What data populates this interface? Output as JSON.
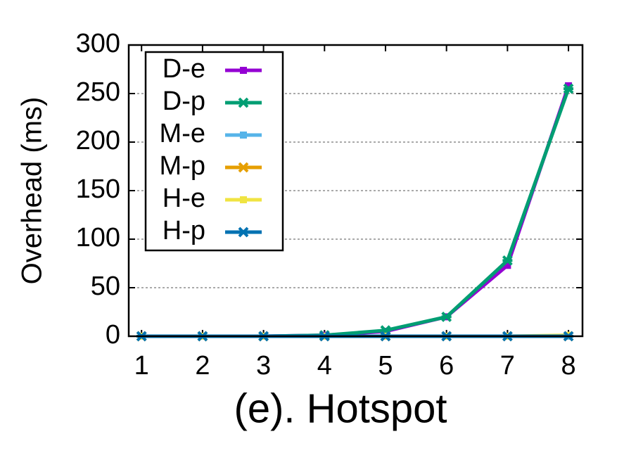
{
  "chart_data": {
    "type": "line",
    "title": "(e). Hotspot",
    "ylabel": "Overhead (ms)",
    "x": [
      1,
      2,
      3,
      4,
      5,
      6,
      7,
      8
    ],
    "xlim": [
      0.79,
      8.23
    ],
    "xticks": [
      1,
      2,
      3,
      4,
      5,
      6,
      7,
      8
    ],
    "ylim": [
      0,
      300
    ],
    "yticks": [
      0,
      50,
      100,
      150,
      200,
      250,
      300
    ],
    "grid": true,
    "legend": "upper left",
    "series": [
      {
        "name": "D-e",
        "color": "#9400d3",
        "marker": "square",
        "values": [
          0,
          0,
          0,
          1,
          5,
          20,
          73,
          258
        ]
      },
      {
        "name": "D-p",
        "color": "#009e73",
        "marker": "cross",
        "values": [
          0,
          0,
          0,
          1,
          6,
          20,
          78,
          255
        ]
      },
      {
        "name": "M-e",
        "color": "#56b4e9",
        "marker": "square",
        "values": [
          0,
          0,
          0,
          0,
          0,
          0,
          0,
          0
        ]
      },
      {
        "name": "M-p",
        "color": "#e69f00",
        "marker": "cross",
        "values": [
          0,
          0,
          0,
          0,
          0,
          0,
          0,
          0
        ]
      },
      {
        "name": "H-e",
        "color": "#f0e442",
        "marker": "square",
        "values": [
          0,
          0,
          0,
          0,
          0,
          0,
          0,
          1
        ]
      },
      {
        "name": "H-p",
        "color": "#0072b2",
        "marker": "cross",
        "values": [
          0,
          0,
          0,
          0,
          0,
          0,
          0,
          0
        ]
      }
    ]
  }
}
